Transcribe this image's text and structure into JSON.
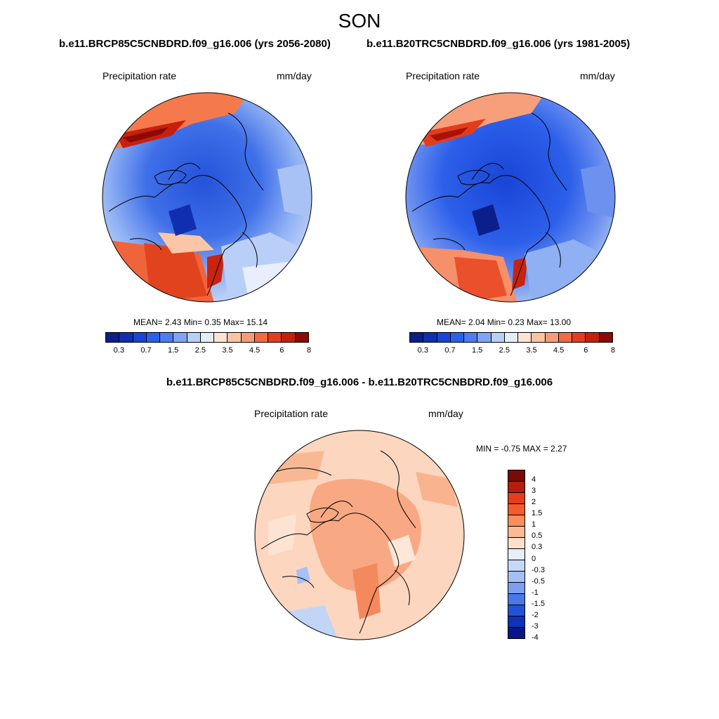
{
  "season": "SON",
  "panels": [
    {
      "case": "b.e11.BRCP85C5CNBDRD.f09_g16.006 (yrs 2056-2080)",
      "variable": "Precipitation rate",
      "units": "mm/day",
      "stats": "MEAN=   2.43  Min=   0.35  Max=  15.14"
    },
    {
      "case": "b.e11.B20TRC5CNBDRD.f09_g16.006 (yrs 1981-2005)",
      "variable": "Precipitation rate",
      "units": "mm/day",
      "stats": "MEAN=   2.04  Min=   0.23  Max=  13.00"
    }
  ],
  "diff": {
    "title": "b.e11.BRCP85C5CNBDRD.f09_g16.006 - b.e11.B20TRC5CNBDRD.f09_g16.006",
    "variable": "Precipitation rate",
    "units": "mm/day",
    "stats": "MIN =  -0.75 MAX =   2.27"
  },
  "colorbar_main": {
    "colors": [
      "#0b1e8a",
      "#0f2fb0",
      "#1a45d6",
      "#2c5fea",
      "#4c7cf2",
      "#7fa3f5",
      "#b8cff8",
      "#e3edfb",
      "#fde3d2",
      "#fbc2a4",
      "#f89b74",
      "#f36b45",
      "#e63d1f",
      "#c4200e",
      "#8b0a05"
    ],
    "ticks": [
      "0.3",
      "0.7",
      "1.5",
      "2.5",
      "3.5",
      "4.5",
      "6",
      "8"
    ]
  },
  "colorbar_diff": {
    "colors": [
      "#7a0a05",
      "#b51e0c",
      "#e43d18",
      "#f45a2a",
      "#f88e5c",
      "#fbb996",
      "#fde0cb",
      "#e6eefb",
      "#c6d8f7",
      "#a3bff4",
      "#7c9ff0",
      "#4b78e8",
      "#2252d8",
      "#0d33b8",
      "#07178a"
    ],
    "ticks": [
      "4",
      "3",
      "2",
      "1.5",
      "1",
      "0.5",
      "0.3",
      "0",
      "-0.3",
      "-0.5",
      "-1",
      "-1.5",
      "-2",
      "-3",
      "-4"
    ]
  }
}
